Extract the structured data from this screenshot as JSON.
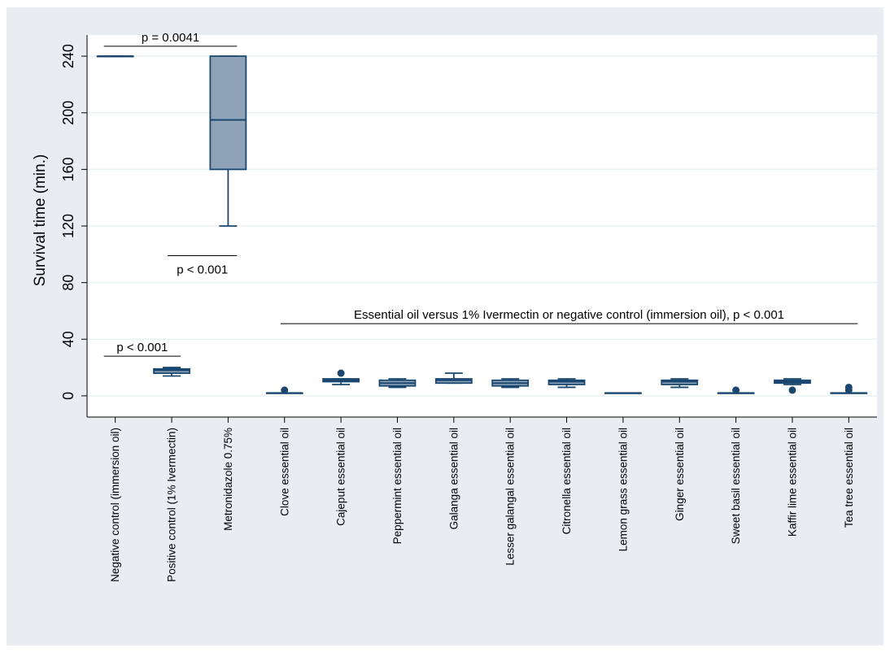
{
  "chart_data": {
    "type": "box",
    "ylabel": "Survival time (min.)",
    "ylim": [
      -15,
      255
    ],
    "yticks": [
      0,
      40,
      80,
      120,
      160,
      200,
      240
    ],
    "categories": [
      "Negative control (immersion oil)",
      "Positive control (1% Ivermectin)",
      "Metronidazole 0.75%",
      "Clove essential oil",
      "Cajeput essential oil",
      "Peppermint essential oil",
      "Galanga essential oil",
      "Lesser galangal essential oil",
      "Citronella essential oil",
      "Lemon grass essential oil",
      "Ginger essential oil",
      "Sweet basil essential oil",
      "Kaffir lime essential oil",
      "Tea tree essential oil"
    ],
    "boxes": [
      {
        "whisker_low": 240,
        "q1": 240,
        "median": 240,
        "q3": 240,
        "whisker_high": 240,
        "outliers": []
      },
      {
        "whisker_low": 14,
        "q1": 16,
        "median": 18,
        "q3": 19,
        "whisker_high": 20,
        "outliers": []
      },
      {
        "whisker_low": 120,
        "q1": 160,
        "median": 195,
        "q3": 240,
        "whisker_high": 240,
        "outliers": []
      },
      {
        "whisker_low": 2,
        "q1": 2,
        "median": 2,
        "q3": 2,
        "whisker_high": 2,
        "outliers": [
          4
        ]
      },
      {
        "whisker_low": 8,
        "q1": 10,
        "median": 11,
        "q3": 12,
        "whisker_high": 12,
        "outliers": [
          16
        ]
      },
      {
        "whisker_low": 6,
        "q1": 7,
        "median": 9,
        "q3": 11,
        "whisker_high": 12,
        "outliers": []
      },
      {
        "whisker_low": 9,
        "q1": 9,
        "median": 11,
        "q3": 12,
        "whisker_high": 16,
        "outliers": []
      },
      {
        "whisker_low": 6,
        "q1": 7,
        "median": 9,
        "q3": 11,
        "whisker_high": 12,
        "outliers": []
      },
      {
        "whisker_low": 6,
        "q1": 8,
        "median": 10,
        "q3": 11,
        "whisker_high": 12,
        "outliers": []
      },
      {
        "whisker_low": 2,
        "q1": 2,
        "median": 2,
        "q3": 2,
        "whisker_high": 2,
        "outliers": []
      },
      {
        "whisker_low": 6,
        "q1": 8,
        "median": 10,
        "q3": 11,
        "whisker_high": 12,
        "outliers": []
      },
      {
        "whisker_low": 2,
        "q1": 2,
        "median": 2,
        "q3": 2,
        "whisker_high": 2,
        "outliers": [
          4
        ]
      },
      {
        "whisker_low": 8,
        "q1": 9,
        "median": 10,
        "q3": 11,
        "whisker_high": 12,
        "outliers": [
          4
        ]
      },
      {
        "whisker_low": 2,
        "q1": 2,
        "median": 2,
        "q3": 2,
        "whisker_high": 2,
        "outliers": [
          4,
          6
        ]
      }
    ],
    "annotations": [
      {
        "text": "p = 0.0041",
        "from_category": 0,
        "to_category": 2,
        "y": 247,
        "label_position": "above"
      },
      {
        "text": "p < 0.001",
        "from_category": 1,
        "to_category": 2,
        "y": 99,
        "label_position": "below"
      },
      {
        "text": "p < 0.001",
        "from_category": 0,
        "to_category": 1,
        "y": 28,
        "label_position": "above"
      },
      {
        "text": "Essential oil versus 1% Ivermectin or negative control (immersion oil), p < 0.001",
        "from_category": 3,
        "to_category": 13,
        "y": 51,
        "label_position": "above"
      }
    ],
    "colors": {
      "box_fill": "#8fa3b8",
      "box_stroke": "#1a476f",
      "background": "#e9edf1",
      "plot_background": "#ffffff",
      "grid": "#eaf2f3"
    },
    "grid": true
  }
}
